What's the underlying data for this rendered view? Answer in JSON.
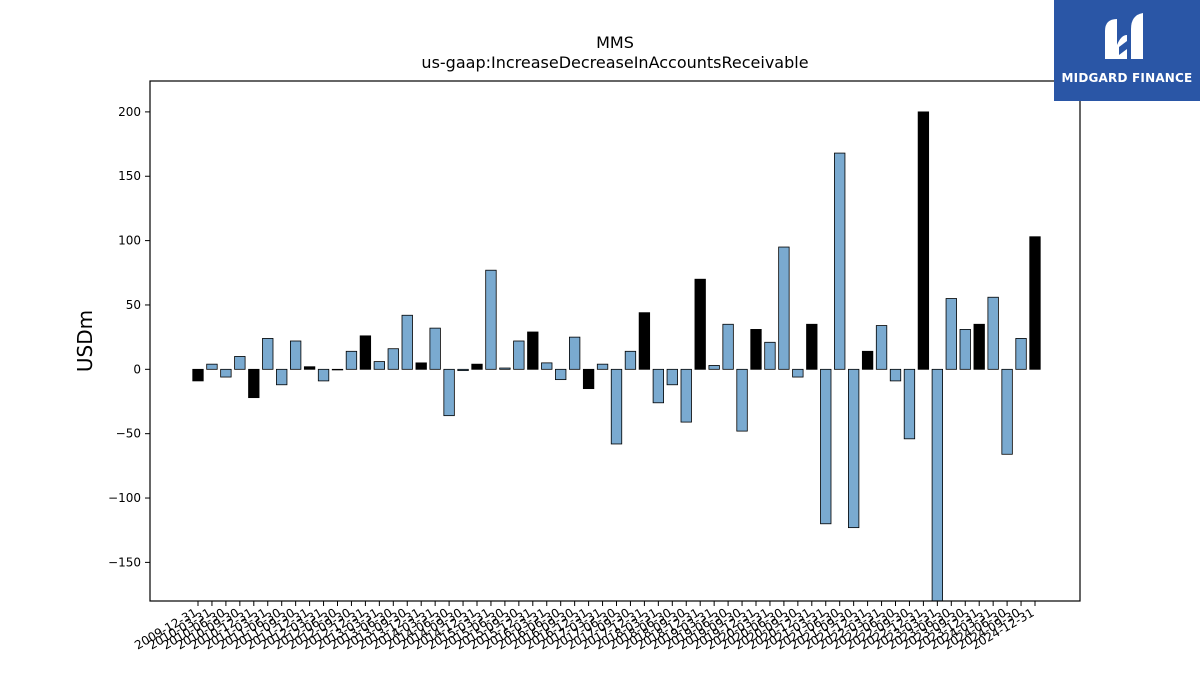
{
  "logo": {
    "text": "MIDGARD FINANCE",
    "background": "#2a56a6"
  },
  "chart_data": {
    "type": "bar",
    "title": "MMS",
    "subtitle": "us-gaap:IncreaseDecreaseInAccountsReceivable",
    "ylabel": "USDm",
    "xlabel": "",
    "ylim": [
      -180,
      224
    ],
    "yticks": [
      -150,
      -100,
      -50,
      0,
      50,
      100,
      150,
      200
    ],
    "grid": false,
    "colors": {
      "quarter": "#7aaad0",
      "year_end": "#000000",
      "edge": "#000000"
    },
    "categories": [
      "2009-12-31",
      "2010-03-31",
      "2010-06-30",
      "2010-09-30",
      "2010-12-31",
      "2011-03-31",
      "2011-06-30",
      "2011-09-30",
      "2011-12-31",
      "2012-03-31",
      "2012-06-30",
      "2012-09-30",
      "2012-12-31",
      "2013-03-31",
      "2013-06-30",
      "2013-09-30",
      "2013-12-31",
      "2014-03-31",
      "2014-06-30",
      "2014-09-30",
      "2014-12-31",
      "2015-03-31",
      "2015-06-30",
      "2015-09-30",
      "2015-12-31",
      "2016-03-31",
      "2016-06-30",
      "2016-09-30",
      "2016-12-31",
      "2017-03-31",
      "2017-06-30",
      "2017-09-30",
      "2017-12-31",
      "2018-03-31",
      "2018-06-30",
      "2018-09-30",
      "2018-12-31",
      "2019-03-31",
      "2019-06-30",
      "2019-09-30",
      "2019-12-31",
      "2020-03-31",
      "2020-06-30",
      "2020-09-30",
      "2020-12-31",
      "2021-03-31",
      "2021-06-30",
      "2021-09-30",
      "2021-12-31",
      "2022-03-31",
      "2022-06-30",
      "2022-09-30",
      "2022-12-31",
      "2023-03-31",
      "2023-06-30",
      "2023-09-30",
      "2023-12-31",
      "2024-03-31",
      "2024-06-30",
      "2024-09-30",
      "2024-12-31"
    ],
    "x_tick_labels": [
      "2009-12-31",
      "2010-03-31",
      "2010-06-30",
      "2010-09-30",
      "2010-12-31",
      "2011-03-31",
      "2011-06-30",
      "2011-09-30",
      "2011-12-31",
      "2012-03-31",
      "2012-06-30",
      "2012-09-30",
      "2012-12-31",
      "2013-03-31",
      "2013-06-30",
      "2013-09-30",
      "2013-12-31",
      "2014-03-31",
      "2014-06-30",
      "2014-09-30",
      "2014-12-31",
      "2015-03-31",
      "2015-06-30",
      "2015-09-30",
      "2015-12-31",
      "2016-03-31",
      "2016-06-30",
      "2016-09-30",
      "2016-12-31",
      "2017-03-31",
      "2017-06-30",
      "2017-09-30",
      "2017-12-31",
      "2018-03-31",
      "2018-06-30",
      "2018-09-30",
      "2018-12-31",
      "2019-03-31",
      "2019-06-30",
      "2019-09-30",
      "2019-12-31",
      "2020-03-31",
      "2020-06-30",
      "2020-09-30",
      "2020-12-31",
      "2021-03-31",
      "2021-06-30",
      "2021-09-30",
      "2021-12-31",
      "2022-03-31",
      "2022-06-30",
      "2022-09-30",
      "2022-12-31",
      "2023-03-31",
      "2023-06-30",
      "2023-09-30",
      "2023-12-31",
      "2024-03-31",
      "2024-06-30",
      "2024-09-30",
      "2024-12-31"
    ],
    "values": [
      -9,
      4,
      -6,
      10,
      -22,
      24,
      -12,
      22,
      2,
      -9,
      0,
      14,
      26,
      6,
      16,
      42,
      5,
      32,
      -36,
      -1,
      4,
      77,
      1,
      22,
      29,
      5,
      -8,
      25,
      -15,
      4,
      -58,
      14,
      44,
      -26,
      -12,
      -41,
      70,
      3,
      35,
      -48,
      31,
      21,
      95,
      -6,
      35,
      -120,
      168,
      -123,
      14,
      34,
      -9,
      -54,
      200,
      -180,
      55,
      31,
      35,
      56,
      -66,
      24,
      103
    ],
    "year_end": [
      true,
      false,
      false,
      false,
      true,
      false,
      false,
      false,
      true,
      false,
      false,
      false,
      true,
      false,
      false,
      false,
      true,
      false,
      false,
      false,
      true,
      false,
      false,
      false,
      true,
      false,
      false,
      false,
      true,
      false,
      false,
      false,
      true,
      false,
      false,
      false,
      true,
      false,
      false,
      false,
      true,
      false,
      false,
      false,
      true,
      false,
      false,
      false,
      true,
      false,
      false,
      false,
      true,
      false,
      false,
      false,
      true,
      false,
      false,
      false,
      true
    ]
  }
}
